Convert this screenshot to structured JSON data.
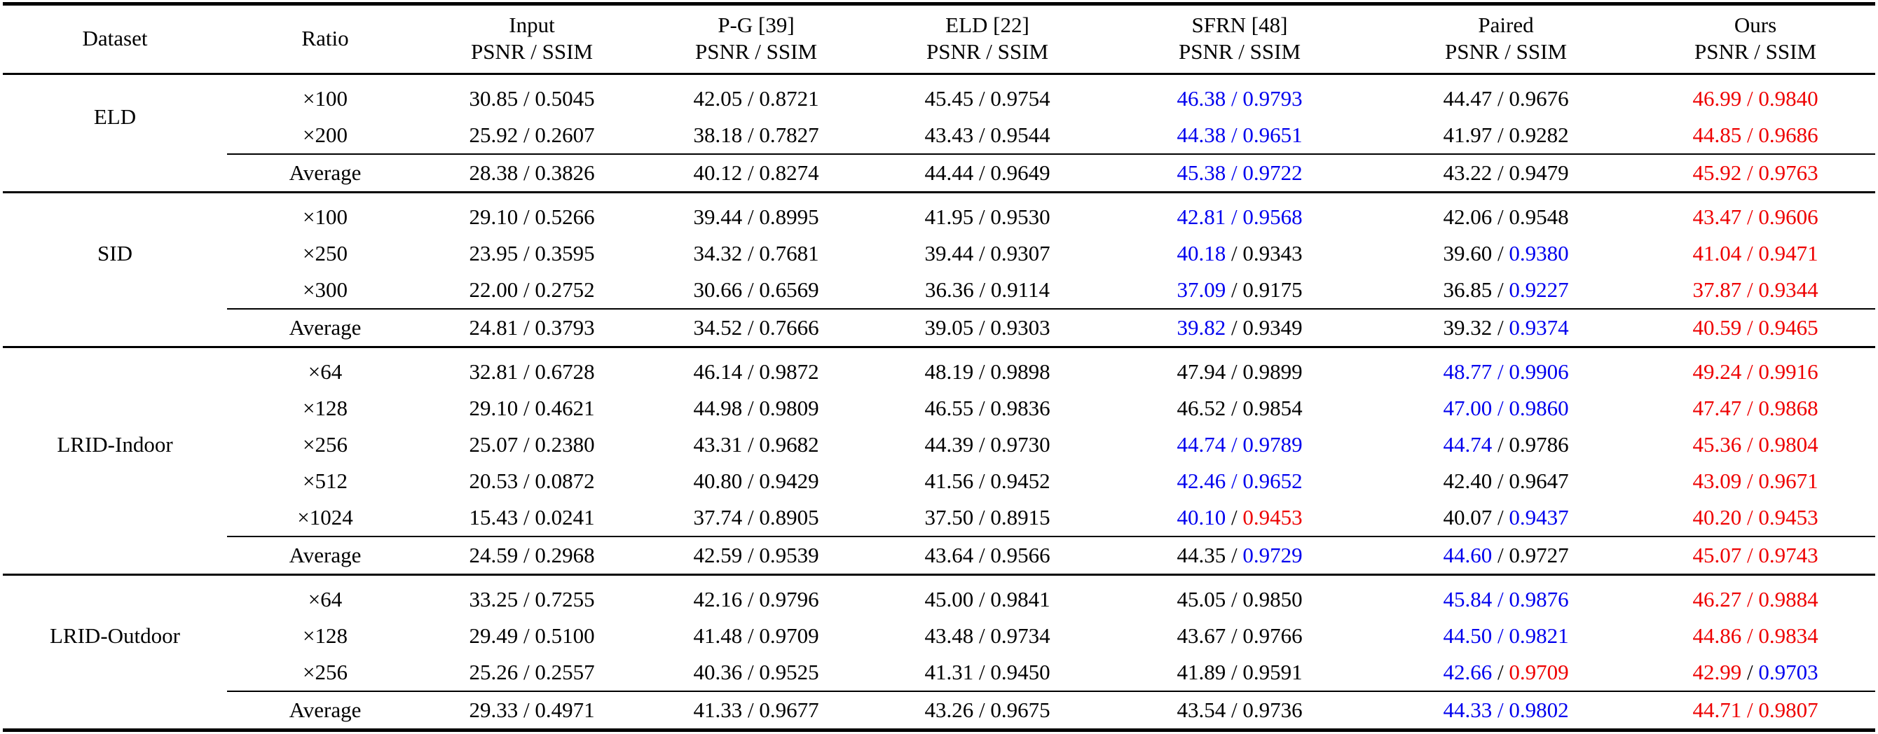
{
  "table": {
    "columns": [
      {
        "label": "Dataset",
        "sub": ""
      },
      {
        "label": "Ratio",
        "sub": ""
      },
      {
        "label": "Input",
        "sub": "PSNR / SSIM"
      },
      {
        "label": "P-G [39]",
        "sub": "PSNR / SSIM"
      },
      {
        "label": "ELD [22]",
        "sub": "PSNR / SSIM"
      },
      {
        "label": "SFRN [48]",
        "sub": "PSNR / SSIM"
      },
      {
        "label": "Paired",
        "sub": "PSNR / SSIM"
      },
      {
        "label": "Ours",
        "sub": "PSNR / SSIM"
      }
    ],
    "colors": {
      "normal": "#000000",
      "second_best": "#0000ee",
      "best": "#ee0000"
    },
    "groups": [
      {
        "dataset": "ELD",
        "rows": [
          {
            "ratio": "×100",
            "is_average": false,
            "cells": [
              {
                "psnr": "30.85",
                "ssim": "0.5045",
                "pc": "k",
                "sc": "k"
              },
              {
                "psnr": "42.05",
                "ssim": "0.8721",
                "pc": "k",
                "sc": "k"
              },
              {
                "psnr": "45.45",
                "ssim": "0.9754",
                "pc": "k",
                "sc": "k"
              },
              {
                "psnr": "46.38",
                "ssim": "0.9793",
                "pc": "b",
                "sc": "b"
              },
              {
                "psnr": "44.47",
                "ssim": "0.9676",
                "pc": "k",
                "sc": "k"
              },
              {
                "psnr": "46.99",
                "ssim": "0.9840",
                "pc": "r",
                "sc": "r"
              }
            ]
          },
          {
            "ratio": "×200",
            "is_average": false,
            "cells": [
              {
                "psnr": "25.92",
                "ssim": "0.2607",
                "pc": "k",
                "sc": "k"
              },
              {
                "psnr": "38.18",
                "ssim": "0.7827",
                "pc": "k",
                "sc": "k"
              },
              {
                "psnr": "43.43",
                "ssim": "0.9544",
                "pc": "k",
                "sc": "k"
              },
              {
                "psnr": "44.38",
                "ssim": "0.9651",
                "pc": "b",
                "sc": "b"
              },
              {
                "psnr": "41.97",
                "ssim": "0.9282",
                "pc": "k",
                "sc": "k"
              },
              {
                "psnr": "44.85",
                "ssim": "0.9686",
                "pc": "r",
                "sc": "r"
              }
            ]
          },
          {
            "ratio": "Average",
            "is_average": true,
            "cells": [
              {
                "psnr": "28.38",
                "ssim": "0.3826",
                "pc": "k",
                "sc": "k"
              },
              {
                "psnr": "40.12",
                "ssim": "0.8274",
                "pc": "k",
                "sc": "k"
              },
              {
                "psnr": "44.44",
                "ssim": "0.9649",
                "pc": "k",
                "sc": "k"
              },
              {
                "psnr": "45.38",
                "ssim": "0.9722",
                "pc": "b",
                "sc": "b"
              },
              {
                "psnr": "43.22",
                "ssim": "0.9479",
                "pc": "k",
                "sc": "k"
              },
              {
                "psnr": "45.92",
                "ssim": "0.9763",
                "pc": "r",
                "sc": "r"
              }
            ]
          }
        ]
      },
      {
        "dataset": "SID",
        "rows": [
          {
            "ratio": "×100",
            "is_average": false,
            "cells": [
              {
                "psnr": "29.10",
                "ssim": "0.5266",
                "pc": "k",
                "sc": "k"
              },
              {
                "psnr": "39.44",
                "ssim": "0.8995",
                "pc": "k",
                "sc": "k"
              },
              {
                "psnr": "41.95",
                "ssim": "0.9530",
                "pc": "k",
                "sc": "k"
              },
              {
                "psnr": "42.81",
                "ssim": "0.9568",
                "pc": "b",
                "sc": "b"
              },
              {
                "psnr": "42.06",
                "ssim": "0.9548",
                "pc": "k",
                "sc": "k"
              },
              {
                "psnr": "43.47",
                "ssim": "0.9606",
                "pc": "r",
                "sc": "r"
              }
            ]
          },
          {
            "ratio": "×250",
            "is_average": false,
            "cells": [
              {
                "psnr": "23.95",
                "ssim": "0.3595",
                "pc": "k",
                "sc": "k"
              },
              {
                "psnr": "34.32",
                "ssim": "0.7681",
                "pc": "k",
                "sc": "k"
              },
              {
                "psnr": "39.44",
                "ssim": "0.9307",
                "pc": "k",
                "sc": "k"
              },
              {
                "psnr": "40.18",
                "ssim": "0.9343",
                "pc": "b",
                "sc": "k"
              },
              {
                "psnr": "39.60",
                "ssim": "0.9380",
                "pc": "k",
                "sc": "b"
              },
              {
                "psnr": "41.04",
                "ssim": "0.9471",
                "pc": "r",
                "sc": "r"
              }
            ]
          },
          {
            "ratio": "×300",
            "is_average": false,
            "cells": [
              {
                "psnr": "22.00",
                "ssim": "0.2752",
                "pc": "k",
                "sc": "k"
              },
              {
                "psnr": "30.66",
                "ssim": "0.6569",
                "pc": "k",
                "sc": "k"
              },
              {
                "psnr": "36.36",
                "ssim": "0.9114",
                "pc": "k",
                "sc": "k"
              },
              {
                "psnr": "37.09",
                "ssim": "0.9175",
                "pc": "b",
                "sc": "k"
              },
              {
                "psnr": "36.85",
                "ssim": "0.9227",
                "pc": "k",
                "sc": "b"
              },
              {
                "psnr": "37.87",
                "ssim": "0.9344",
                "pc": "r",
                "sc": "r"
              }
            ]
          },
          {
            "ratio": "Average",
            "is_average": true,
            "cells": [
              {
                "psnr": "24.81",
                "ssim": "0.3793",
                "pc": "k",
                "sc": "k"
              },
              {
                "psnr": "34.52",
                "ssim": "0.7666",
                "pc": "k",
                "sc": "k"
              },
              {
                "psnr": "39.05",
                "ssim": "0.9303",
                "pc": "k",
                "sc": "k"
              },
              {
                "psnr": "39.82",
                "ssim": "0.9349",
                "pc": "b",
                "sc": "k"
              },
              {
                "psnr": "39.32",
                "ssim": "0.9374",
                "pc": "k",
                "sc": "b"
              },
              {
                "psnr": "40.59",
                "ssim": "0.9465",
                "pc": "r",
                "sc": "r"
              }
            ]
          }
        ]
      },
      {
        "dataset": "LRID-Indoor",
        "rows": [
          {
            "ratio": "×64",
            "is_average": false,
            "cells": [
              {
                "psnr": "32.81",
                "ssim": "0.6728",
                "pc": "k",
                "sc": "k"
              },
              {
                "psnr": "46.14",
                "ssim": "0.9872",
                "pc": "k",
                "sc": "k"
              },
              {
                "psnr": "48.19",
                "ssim": "0.9898",
                "pc": "k",
                "sc": "k"
              },
              {
                "psnr": "47.94",
                "ssim": "0.9899",
                "pc": "k",
                "sc": "k"
              },
              {
                "psnr": "48.77",
                "ssim": "0.9906",
                "pc": "b",
                "sc": "b"
              },
              {
                "psnr": "49.24",
                "ssim": "0.9916",
                "pc": "r",
                "sc": "r"
              }
            ]
          },
          {
            "ratio": "×128",
            "is_average": false,
            "cells": [
              {
                "psnr": "29.10",
                "ssim": "0.4621",
                "pc": "k",
                "sc": "k"
              },
              {
                "psnr": "44.98",
                "ssim": "0.9809",
                "pc": "k",
                "sc": "k"
              },
              {
                "psnr": "46.55",
                "ssim": "0.9836",
                "pc": "k",
                "sc": "k"
              },
              {
                "psnr": "46.52",
                "ssim": "0.9854",
                "pc": "k",
                "sc": "k"
              },
              {
                "psnr": "47.00",
                "ssim": "0.9860",
                "pc": "b",
                "sc": "b"
              },
              {
                "psnr": "47.47",
                "ssim": "0.9868",
                "pc": "r",
                "sc": "r"
              }
            ]
          },
          {
            "ratio": "×256",
            "is_average": false,
            "cells": [
              {
                "psnr": "25.07",
                "ssim": "0.2380",
                "pc": "k",
                "sc": "k"
              },
              {
                "psnr": "43.31",
                "ssim": "0.9682",
                "pc": "k",
                "sc": "k"
              },
              {
                "psnr": "44.39",
                "ssim": "0.9730",
                "pc": "k",
                "sc": "k"
              },
              {
                "psnr": "44.74",
                "ssim": "0.9789",
                "pc": "b",
                "sc": "b"
              },
              {
                "psnr": "44.74",
                "ssim": "0.9786",
                "pc": "b",
                "sc": "k"
              },
              {
                "psnr": "45.36",
                "ssim": "0.9804",
                "pc": "r",
                "sc": "r"
              }
            ]
          },
          {
            "ratio": "×512",
            "is_average": false,
            "cells": [
              {
                "psnr": "20.53",
                "ssim": "0.0872",
                "pc": "k",
                "sc": "k"
              },
              {
                "psnr": "40.80",
                "ssim": "0.9429",
                "pc": "k",
                "sc": "k"
              },
              {
                "psnr": "41.56",
                "ssim": "0.9452",
                "pc": "k",
                "sc": "k"
              },
              {
                "psnr": "42.46",
                "ssim": "0.9652",
                "pc": "b",
                "sc": "b"
              },
              {
                "psnr": "42.40",
                "ssim": "0.9647",
                "pc": "k",
                "sc": "k"
              },
              {
                "psnr": "43.09",
                "ssim": "0.9671",
                "pc": "r",
                "sc": "r"
              }
            ]
          },
          {
            "ratio": "×1024",
            "is_average": false,
            "cells": [
              {
                "psnr": "15.43",
                "ssim": "0.0241",
                "pc": "k",
                "sc": "k"
              },
              {
                "psnr": "37.74",
                "ssim": "0.8905",
                "pc": "k",
                "sc": "k"
              },
              {
                "psnr": "37.50",
                "ssim": "0.8915",
                "pc": "k",
                "sc": "k"
              },
              {
                "psnr": "40.10",
                "ssim": "0.9453",
                "pc": "b",
                "sc": "r"
              },
              {
                "psnr": "40.07",
                "ssim": "0.9437",
                "pc": "k",
                "sc": "b"
              },
              {
                "psnr": "40.20",
                "ssim": "0.9453",
                "pc": "r",
                "sc": "r"
              }
            ]
          },
          {
            "ratio": "Average",
            "is_average": true,
            "cells": [
              {
                "psnr": "24.59",
                "ssim": "0.2968",
                "pc": "k",
                "sc": "k"
              },
              {
                "psnr": "42.59",
                "ssim": "0.9539",
                "pc": "k",
                "sc": "k"
              },
              {
                "psnr": "43.64",
                "ssim": "0.9566",
                "pc": "k",
                "sc": "k"
              },
              {
                "psnr": "44.35",
                "ssim": "0.9729",
                "pc": "k",
                "sc": "b"
              },
              {
                "psnr": "44.60",
                "ssim": "0.9727",
                "pc": "b",
                "sc": "k"
              },
              {
                "psnr": "45.07",
                "ssim": "0.9743",
                "pc": "r",
                "sc": "r"
              }
            ]
          }
        ]
      },
      {
        "dataset": "LRID-Outdoor",
        "rows": [
          {
            "ratio": "×64",
            "is_average": false,
            "cells": [
              {
                "psnr": "33.25",
                "ssim": "0.7255",
                "pc": "k",
                "sc": "k"
              },
              {
                "psnr": "42.16",
                "ssim": "0.9796",
                "pc": "k",
                "sc": "k"
              },
              {
                "psnr": "45.00",
                "ssim": "0.9841",
                "pc": "k",
                "sc": "k"
              },
              {
                "psnr": "45.05",
                "ssim": "0.9850",
                "pc": "k",
                "sc": "k"
              },
              {
                "psnr": "45.84",
                "ssim": "0.9876",
                "pc": "b",
                "sc": "b"
              },
              {
                "psnr": "46.27",
                "ssim": "0.9884",
                "pc": "r",
                "sc": "r"
              }
            ]
          },
          {
            "ratio": "×128",
            "is_average": false,
            "cells": [
              {
                "psnr": "29.49",
                "ssim": "0.5100",
                "pc": "k",
                "sc": "k"
              },
              {
                "psnr": "41.48",
                "ssim": "0.9709",
                "pc": "k",
                "sc": "k"
              },
              {
                "psnr": "43.48",
                "ssim": "0.9734",
                "pc": "k",
                "sc": "k"
              },
              {
                "psnr": "43.67",
                "ssim": "0.9766",
                "pc": "k",
                "sc": "k"
              },
              {
                "psnr": "44.50",
                "ssim": "0.9821",
                "pc": "b",
                "sc": "b"
              },
              {
                "psnr": "44.86",
                "ssim": "0.9834",
                "pc": "r",
                "sc": "r"
              }
            ]
          },
          {
            "ratio": "×256",
            "is_average": false,
            "cells": [
              {
                "psnr": "25.26",
                "ssim": "0.2557",
                "pc": "k",
                "sc": "k"
              },
              {
                "psnr": "40.36",
                "ssim": "0.9525",
                "pc": "k",
                "sc": "k"
              },
              {
                "psnr": "41.31",
                "ssim": "0.9450",
                "pc": "k",
                "sc": "k"
              },
              {
                "psnr": "41.89",
                "ssim": "0.9591",
                "pc": "k",
                "sc": "k"
              },
              {
                "psnr": "42.66",
                "ssim": "0.9709",
                "pc": "b",
                "sc": "r"
              },
              {
                "psnr": "42.99",
                "ssim": "0.9703",
                "pc": "r",
                "sc": "b"
              }
            ]
          },
          {
            "ratio": "Average",
            "is_average": true,
            "cells": [
              {
                "psnr": "29.33",
                "ssim": "0.4971",
                "pc": "k",
                "sc": "k"
              },
              {
                "psnr": "41.33",
                "ssim": "0.9677",
                "pc": "k",
                "sc": "k"
              },
              {
                "psnr": "43.26",
                "ssim": "0.9675",
                "pc": "k",
                "sc": "k"
              },
              {
                "psnr": "43.54",
                "ssim": "0.9736",
                "pc": "k",
                "sc": "k"
              },
              {
                "psnr": "44.33",
                "ssim": "0.9802",
                "pc": "b",
                "sc": "b"
              },
              {
                "psnr": "44.71",
                "ssim": "0.9807",
                "pc": "r",
                "sc": "r"
              }
            ]
          }
        ]
      }
    ]
  }
}
